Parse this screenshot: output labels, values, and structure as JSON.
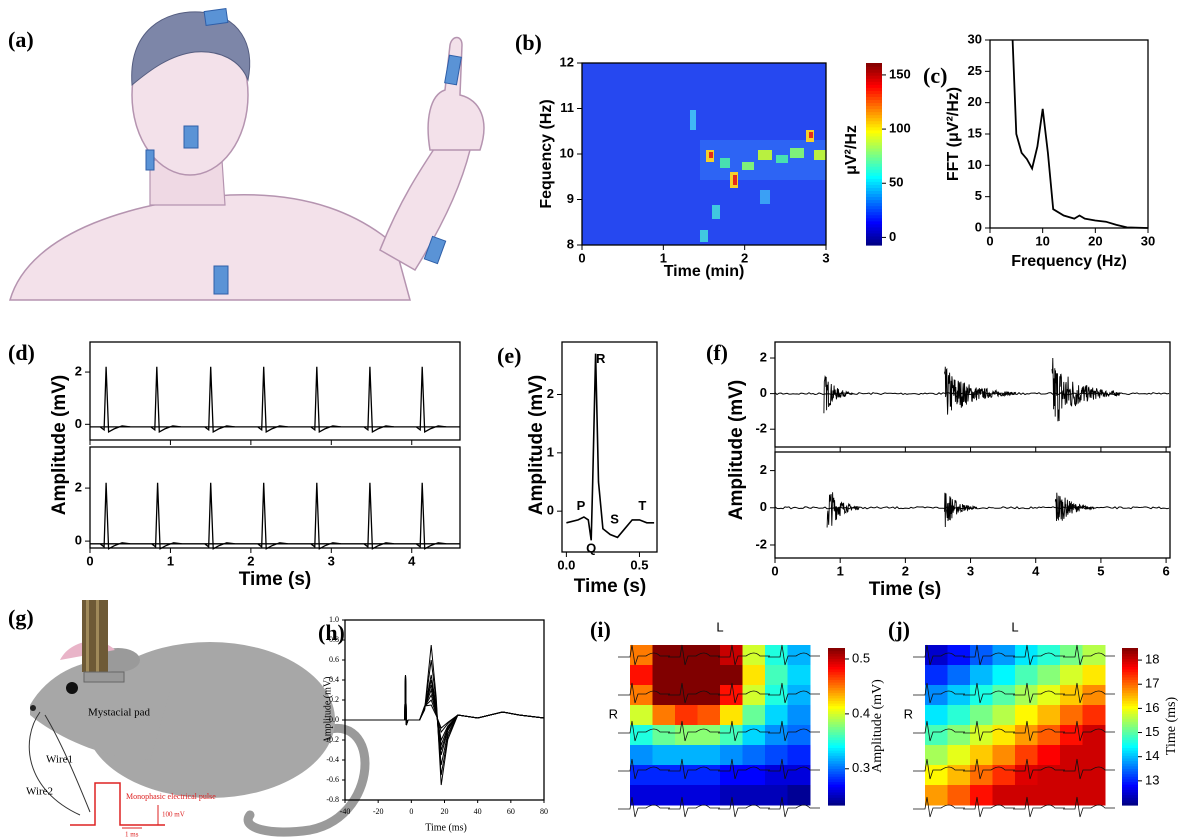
{
  "a": {
    "label": "(a)"
  },
  "b": {
    "label": "(b)",
    "xlabel": "Time (min)",
    "ylabel": "Fequency (Hz)",
    "xlim": [
      0,
      3
    ],
    "xticks": [
      0,
      1,
      2,
      3
    ],
    "ylim": [
      8,
      12
    ],
    "yticks": [
      8,
      9,
      10,
      11,
      12
    ],
    "colorbar": {
      "label": "μV²/Hz",
      "lim": [
        -7,
        161
      ],
      "ticks": [
        0,
        50,
        100,
        150
      ]
    }
  },
  "c": {
    "label": "(c)",
    "xlabel": "Frequency (Hz)",
    "ylabel": "FFT (μV²/Hz)",
    "xlim": [
      0,
      30
    ],
    "xticks": [
      0,
      10,
      20,
      30
    ],
    "ylim": [
      0,
      30
    ],
    "yticks": [
      0,
      5,
      10,
      15,
      20,
      25,
      30
    ],
    "x": [
      4.3,
      5,
      6,
      7,
      8,
      9,
      10,
      11,
      12,
      14,
      16,
      17,
      18,
      20,
      22,
      24,
      26,
      30
    ],
    "values": [
      30,
      15,
      12,
      11,
      9.5,
      13,
      19,
      12,
      3,
      2,
      1.5,
      2,
      1.5,
      1.2,
      1,
      0.5,
      0.1,
      0
    ],
    "color": "#000000"
  },
  "d": {
    "label": "(d)",
    "xlabel": "Time (s)",
    "ylabel": "Amplitude (mV)",
    "xlim": [
      0,
      4.6
    ],
    "xticks": [
      0,
      1,
      2,
      3,
      4
    ],
    "traces": [
      {
        "ylim": [
          -0.6,
          3.15
        ],
        "yticks": [
          0,
          2
        ],
        "baseline": -0.1,
        "x": [
          0.2,
          0.83,
          1.5,
          2.16,
          2.82,
          3.48,
          4.13
        ],
        "values": [
          2.2,
          2.2,
          2.2,
          2.2,
          2.2,
          2.2,
          2.2
        ]
      },
      {
        "ylim": [
          -0.26,
          3.55
        ],
        "yticks": [
          0,
          2
        ],
        "baseline": -0.1,
        "x": [
          0.2,
          0.84,
          1.5,
          2.16,
          2.82,
          3.48,
          4.13
        ],
        "values": [
          2.2,
          2.2,
          2.2,
          2.2,
          2.2,
          2.2,
          2.2
        ]
      }
    ]
  },
  "e": {
    "label": "(e)",
    "xlabel": "Time (s)",
    "ylabel": "Amplitude (mV)",
    "xlim": [
      -0.03,
      0.62
    ],
    "xticks": [
      {
        "value": 0,
        "label": "0.0"
      },
      0.5
    ],
    "ylim": [
      -0.7,
      2.9
    ],
    "yticks": [
      0,
      1,
      2
    ],
    "x": [
      0,
      0.08,
      0.12,
      0.15,
      0.17,
      0.18,
      0.2,
      0.22,
      0.25,
      0.3,
      0.35,
      0.4,
      0.45,
      0.5,
      0.55,
      0.6
    ],
    "values": [
      -0.2,
      -0.15,
      -0.1,
      -0.15,
      -0.5,
      0.5,
      2.7,
      0.5,
      -0.3,
      -0.4,
      -0.45,
      -0.3,
      -0.15,
      -0.15,
      -0.2,
      -0.2
    ],
    "annotations": [
      {
        "text": "P",
        "x": 0.1,
        "y": 0.08
      },
      {
        "text": "Q",
        "x": 0.17,
        "y": -0.65
      },
      {
        "text": "R",
        "x": 0.235,
        "y": 2.6
      },
      {
        "text": "S",
        "x": 0.33,
        "y": -0.15
      },
      {
        "text": "T",
        "x": 0.52,
        "y": 0.08
      }
    ]
  },
  "f": {
    "label": "(f)",
    "xlabel": "Time (s)",
    "ylabel": "Amplitude (mV)",
    "xlim": [
      0,
      6.06
    ],
    "xticks": [
      0,
      1,
      2,
      3,
      4,
      5,
      6
    ],
    "traces": [
      {
        "ylim": [
          -3.0,
          2.9
        ],
        "yticks": [
          -2,
          0,
          2
        ],
        "bursts": [
          {
            "start": 0.75,
            "end": 1.2,
            "amplitude": 1.3
          },
          {
            "start": 2.6,
            "end": 3.7,
            "amplitude": 1.6
          },
          {
            "start": 4.25,
            "end": 5.3,
            "amplitude": 2.2
          }
        ]
      },
      {
        "ylim": [
          -2.7,
          3.0
        ],
        "yticks": [
          -2,
          0,
          2
        ],
        "bursts": [
          {
            "start": 0.8,
            "end": 1.3,
            "amplitude": 1.5
          },
          {
            "start": 2.6,
            "end": 3.1,
            "amplitude": 1.2
          },
          {
            "start": 4.3,
            "end": 4.9,
            "amplitude": 1.2
          }
        ]
      }
    ]
  },
  "g": {
    "label": "(g)",
    "mystacial": "Mystacial pad",
    "wire1": "Wire1",
    "wire2": "Wire2",
    "pulse": "Monophasic electrical pulse",
    "scale_v": "100 mV",
    "scale_t": "1 ms"
  },
  "h": {
    "label": "(h)",
    "xlabel": "Time (ms)",
    "ylabel": "Amplitude (mV)",
    "xlim": [
      -40,
      80
    ],
    "xticks": [
      -40,
      -20,
      0,
      20,
      40,
      60,
      80
    ],
    "ylim": [
      -0.8,
      1.0
    ],
    "yticks": [
      -0.8,
      -0.6,
      -0.4,
      -0.2,
      {
        "value": 0,
        "label": "0.0"
      },
      0.2,
      0.4,
      0.6,
      0.8,
      {
        "value": 1,
        "label": "1.0"
      }
    ],
    "peaks": [
      0.75,
      0.6,
      0.45,
      0.4,
      0.35,
      0.3,
      0.25,
      0.2,
      0.15
    ],
    "troughs": [
      -0.65,
      -0.55,
      -0.45,
      -0.35,
      -0.3,
      -0.25,
      -0.2,
      -0.12,
      -0.08
    ]
  },
  "i": {
    "label": "(i)",
    "top": "L",
    "side": "R",
    "grid": [
      [
        0.45,
        0.52,
        0.55,
        0.55,
        0.5,
        0.4,
        0.35,
        0.32
      ],
      [
        0.48,
        0.55,
        0.57,
        0.57,
        0.52,
        0.42,
        0.36,
        0.33
      ],
      [
        0.45,
        0.52,
        0.55,
        0.54,
        0.48,
        0.4,
        0.35,
        0.32
      ],
      [
        0.4,
        0.45,
        0.47,
        0.46,
        0.42,
        0.37,
        0.33,
        0.31
      ],
      [
        0.35,
        0.37,
        0.38,
        0.38,
        0.36,
        0.33,
        0.31,
        0.3
      ],
      [
        0.31,
        0.32,
        0.32,
        0.32,
        0.31,
        0.3,
        0.29,
        0.28
      ],
      [
        0.28,
        0.28,
        0.28,
        0.28,
        0.27,
        0.27,
        0.26,
        0.26
      ],
      [
        0.26,
        0.26,
        0.26,
        0.26,
        0.25,
        0.25,
        0.25,
        0.24
      ]
    ],
    "colorbar": {
      "label": "Amplitude (mV)",
      "lim": [
        0.234,
        0.52
      ],
      "ticks": [
        0.3,
        0.4,
        0.5
      ]
    }
  },
  "j": {
    "label": "(j)",
    "top": "L",
    "side": "R",
    "grid": [
      [
        12.5,
        12.9,
        13.4,
        13.8,
        14.3,
        14.7,
        15.2,
        15.6
      ],
      [
        13.1,
        13.5,
        14.0,
        14.4,
        14.9,
        15.3,
        15.8,
        16.2
      ],
      [
        13.7,
        14.1,
        14.6,
        15.0,
        15.5,
        15.9,
        16.4,
        16.8
      ],
      [
        14.3,
        14.7,
        15.2,
        15.6,
        16.1,
        16.5,
        17.0,
        17.4
      ],
      [
        14.9,
        15.3,
        15.8,
        16.2,
        16.7,
        17.1,
        17.6,
        18.0
      ],
      [
        15.5,
        15.9,
        16.4,
        16.8,
        17.3,
        17.7,
        18.0,
        18.0
      ],
      [
        16.1,
        16.5,
        17.0,
        17.4,
        17.9,
        18.0,
        18.0,
        18.0
      ],
      [
        16.7,
        17.1,
        17.6,
        18.0,
        18.0,
        18.0,
        18.0,
        18.0
      ]
    ],
    "colorbar": {
      "label": "Time (ms)",
      "lim": [
        12.0,
        18.5
      ],
      "ticks": [
        13,
        14,
        15,
        16,
        17,
        18
      ]
    }
  }
}
